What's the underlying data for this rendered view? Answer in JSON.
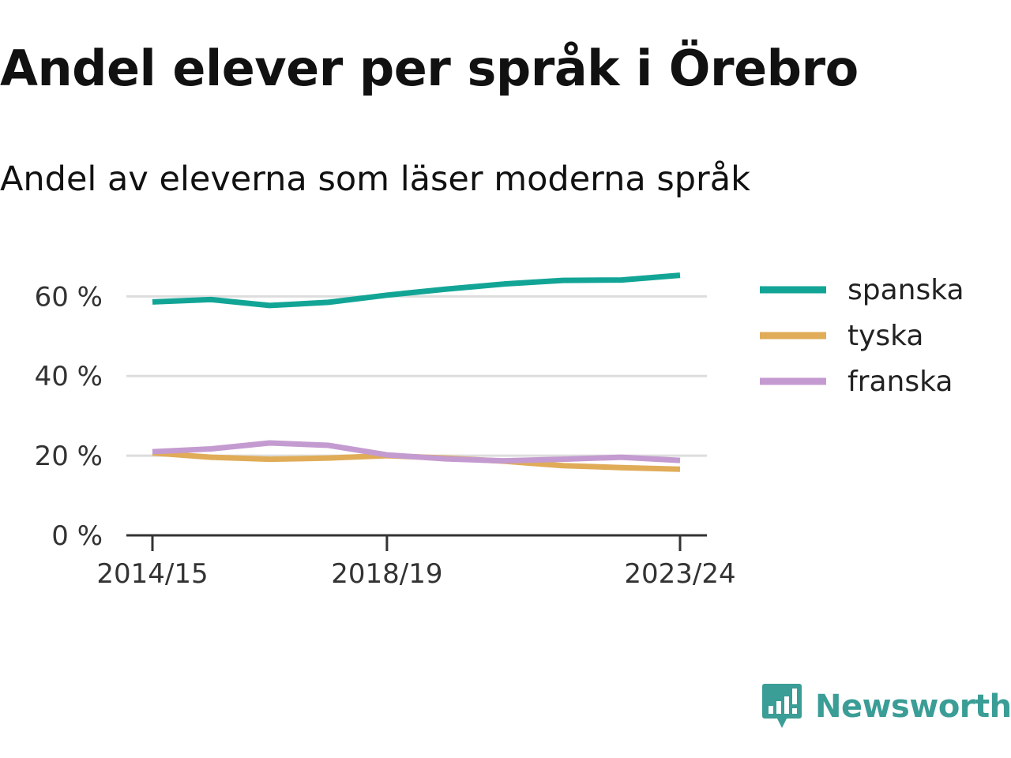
{
  "title": "Andel elever per språk i Örebro",
  "subtitle": "Andel av eleverna som läser moderna språk",
  "brand": {
    "name": "Newsworthy",
    "icon": "newsworthy-logo-icon",
    "color": "#3a9d96"
  },
  "chart_data": {
    "type": "line",
    "x": [
      "2014/15",
      "2015/16",
      "2016/17",
      "2017/18",
      "2018/19",
      "2019/20",
      "2020/21",
      "2021/22",
      "2022/23",
      "2023/24"
    ],
    "x_ticks": [
      "2014/15",
      "2018/19",
      "2023/24"
    ],
    "y_ticks": [
      0,
      20,
      40,
      60
    ],
    "y_tick_labels": [
      "0 %",
      "20 %",
      "40 %",
      "60 %"
    ],
    "ylim": [
      0,
      67
    ],
    "grid": true,
    "legend_position": "right",
    "series": [
      {
        "name": "spanska",
        "color": "#12a596",
        "values": [
          58.6,
          59.2,
          57.7,
          58.5,
          60.3,
          61.8,
          63.1,
          64.0,
          64.1,
          65.3
        ]
      },
      {
        "name": "tyska",
        "color": "#e0ac58",
        "values": [
          20.7,
          19.6,
          19.1,
          19.4,
          20.0,
          19.4,
          18.6,
          17.5,
          17.0,
          16.6
        ]
      },
      {
        "name": "franska",
        "color": "#c49bd0",
        "values": [
          21.0,
          21.7,
          23.2,
          22.6,
          20.2,
          19.2,
          18.7,
          19.1,
          19.6,
          18.8
        ]
      }
    ]
  }
}
